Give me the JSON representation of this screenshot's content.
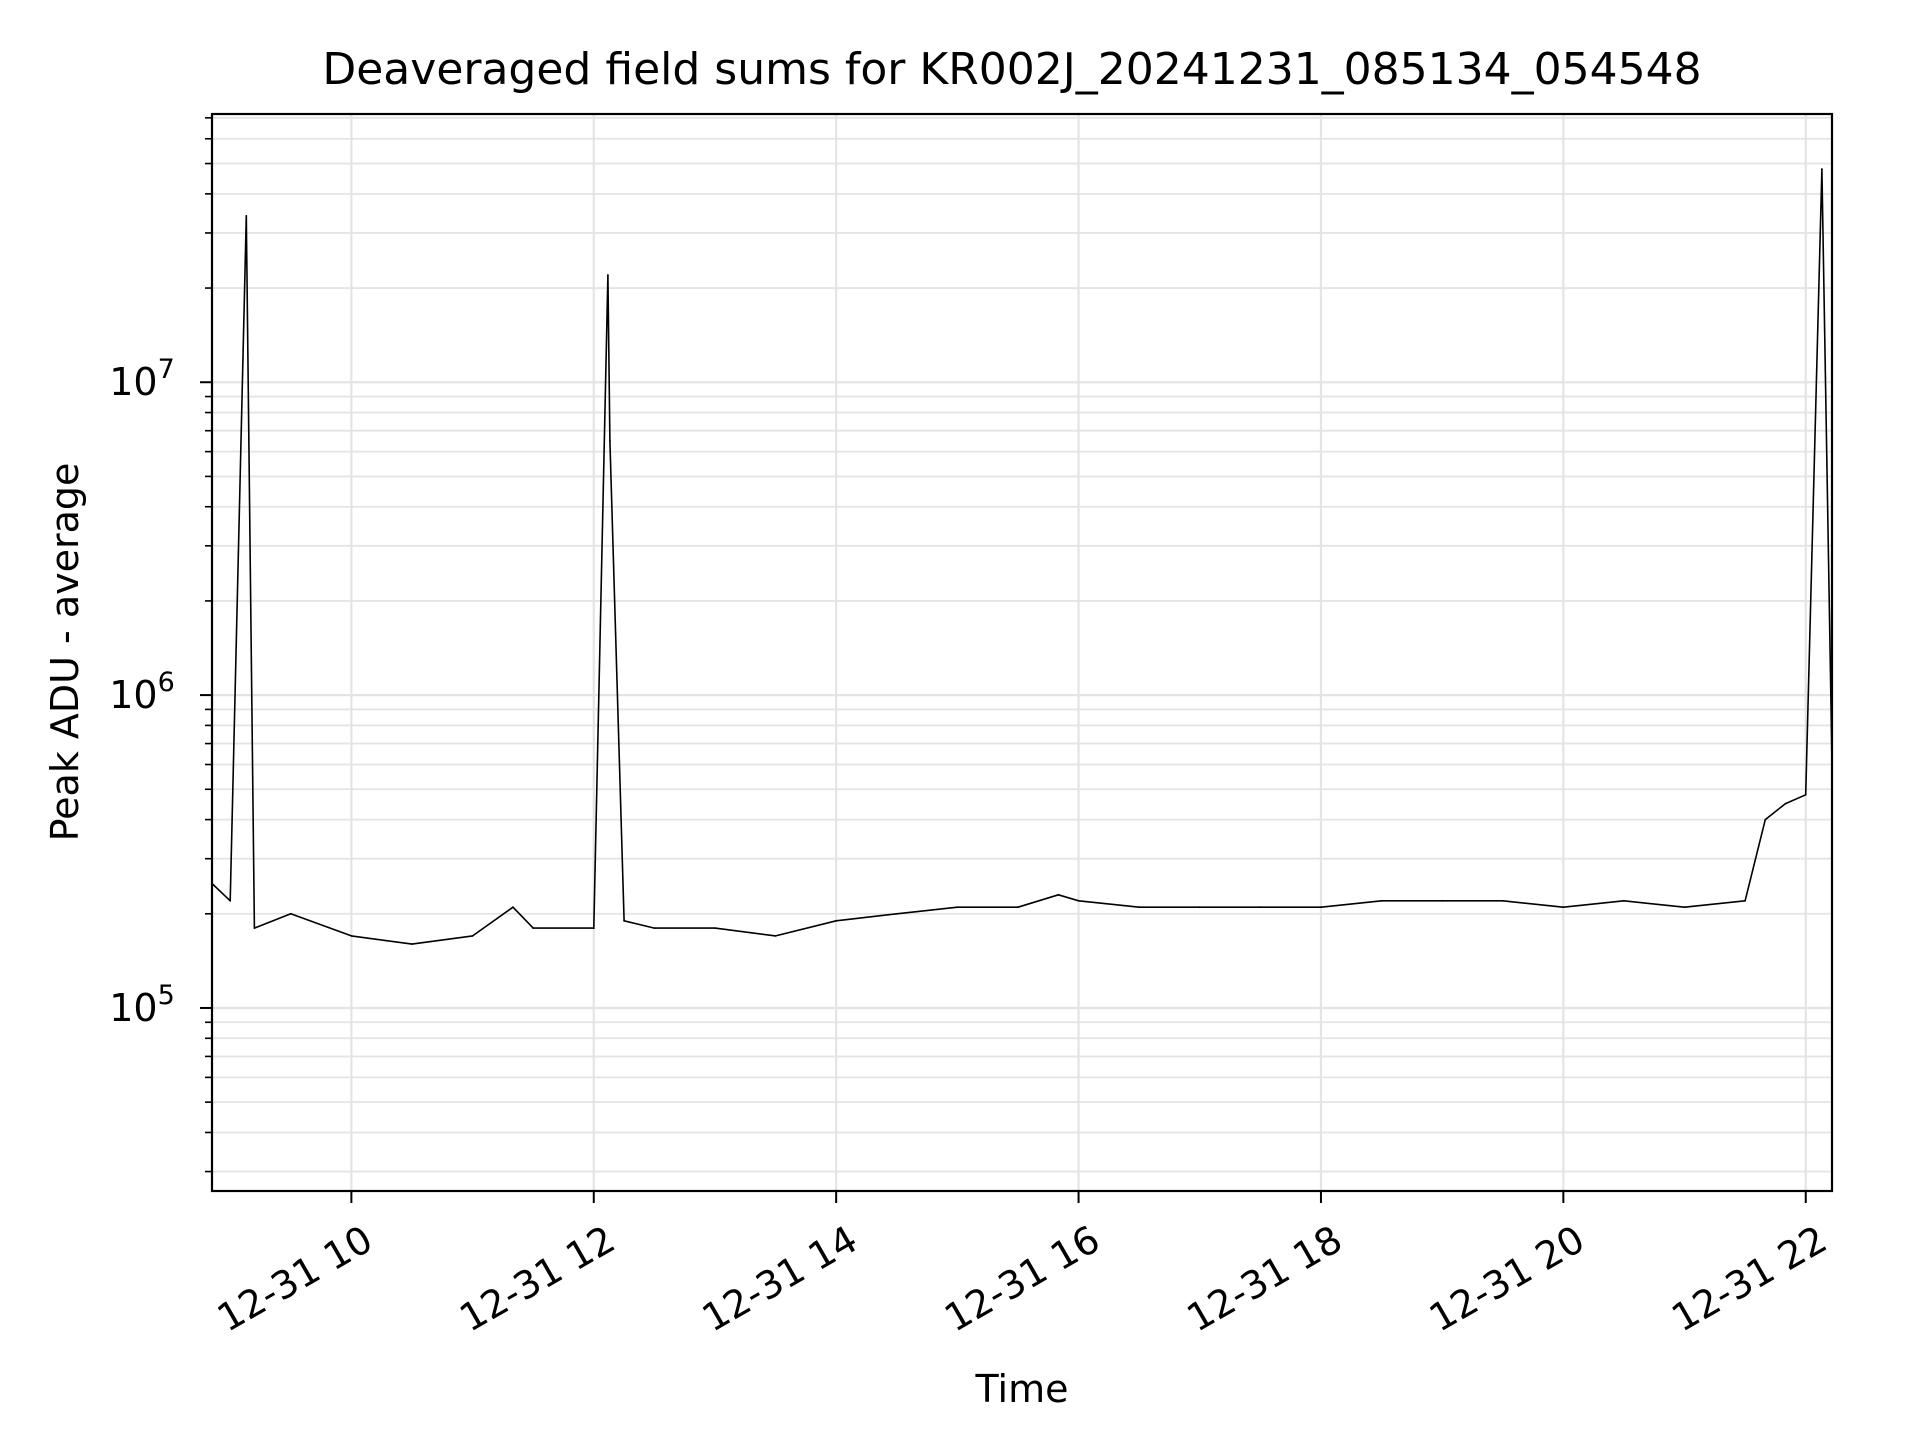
{
  "chart_data": {
    "type": "line",
    "title": "Deaveraged field sums for KR002J_20241231_085134_054548",
    "xlabel": "Time",
    "ylabel": "Peak ADU - average",
    "x_range": [
      "2024-12-31 08:51",
      "2024-12-31 22:13"
    ],
    "y_range": [
      26000,
      72000000
    ],
    "y_scale": "log",
    "grid": true,
    "legend": "none",
    "line_color": "#000000",
    "x_ticks": [
      "12-31 10",
      "12-31 12",
      "12-31 14",
      "12-31 16",
      "12-31 18",
      "12-31 20",
      "12-31 22"
    ],
    "y_ticks": [
      {
        "base": "10",
        "exp": "5",
        "value": 100000
      },
      {
        "base": "10",
        "exp": "6",
        "value": 1000000
      },
      {
        "base": "10",
        "exp": "7",
        "value": 10000000
      }
    ],
    "series": [
      {
        "x": [
          "2024-12-31 08:51",
          "2024-12-31 09:00",
          "2024-12-31 09:08",
          "2024-12-31 09:12",
          "2024-12-31 09:30",
          "2024-12-31 10:00",
          "2024-12-31 10:30",
          "2024-12-31 11:00",
          "2024-12-31 11:20",
          "2024-12-31 11:30",
          "2024-12-31 12:00",
          "2024-12-31 12:07",
          "2024-12-31 12:08",
          "2024-12-31 12:15",
          "2024-12-31 12:30",
          "2024-12-31 13:00",
          "2024-12-31 13:30",
          "2024-12-31 14:00",
          "2024-12-31 14:30",
          "2024-12-31 15:00",
          "2024-12-31 15:30",
          "2024-12-31 15:50",
          "2024-12-31 16:00",
          "2024-12-31 16:30",
          "2024-12-31 17:00",
          "2024-12-31 17:30",
          "2024-12-31 18:00",
          "2024-12-31 18:30",
          "2024-12-31 19:00",
          "2024-12-31 19:30",
          "2024-12-31 20:00",
          "2024-12-31 20:30",
          "2024-12-31 21:00",
          "2024-12-31 21:30",
          "2024-12-31 21:40",
          "2024-12-31 21:50",
          "2024-12-31 22:00",
          "2024-12-31 22:08",
          "2024-12-31 22:13"
        ],
        "y": [
          250000,
          220000,
          34000000,
          180000,
          200000,
          170000,
          160000,
          170000,
          210000,
          180000,
          180000,
          22000000,
          6500000,
          190000,
          180000,
          180000,
          170000,
          190000,
          200000,
          210000,
          210000,
          230000,
          220000,
          210000,
          210000,
          210000,
          210000,
          220000,
          220000,
          220000,
          210000,
          220000,
          210000,
          220000,
          400000,
          450000,
          480000,
          48000000,
          600000
        ]
      }
    ]
  }
}
